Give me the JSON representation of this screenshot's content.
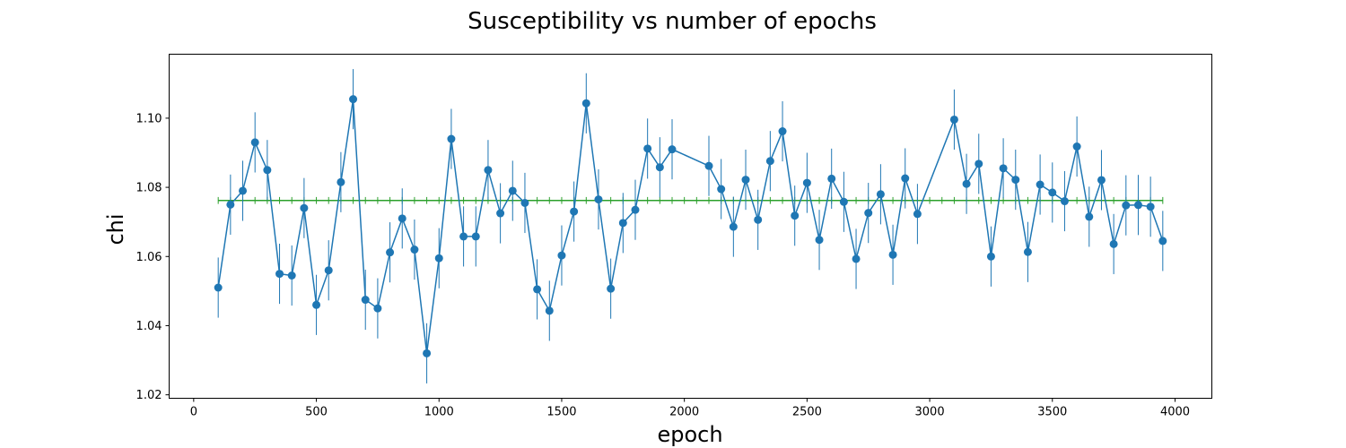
{
  "chart_data": {
    "type": "line",
    "title": "Susceptibility vs number of epochs",
    "xlabel": "epoch",
    "ylabel": "chi",
    "xlim": [
      -100,
      4150
    ],
    "ylim": [
      1.019,
      1.1185
    ],
    "xticks": [
      0,
      500,
      1000,
      1500,
      2000,
      2500,
      3000,
      3500,
      4000
    ],
    "xtick_labels": [
      "0",
      "500",
      "1000",
      "1500",
      "2000",
      "2500",
      "3000",
      "3500",
      "4000"
    ],
    "yticks": [
      1.02,
      1.04,
      1.06,
      1.08,
      1.1
    ],
    "ytick_labels": [
      "1.02",
      "1.04",
      "1.06",
      "1.08",
      "1.10"
    ],
    "grid": false,
    "series": [
      {
        "color": "#1f77b4",
        "marker": "circle",
        "error": 0.0087,
        "x": [
          100,
          150,
          200,
          250,
          300,
          350,
          400,
          450,
          500,
          550,
          600,
          650,
          700,
          750,
          800,
          850,
          900,
          950,
          1000,
          1050,
          1100,
          1150,
          1200,
          1250,
          1300,
          1350,
          1400,
          1450,
          1500,
          1550,
          1600,
          1650,
          1700,
          1750,
          1800,
          1850,
          1900,
          1950,
          2100,
          2150,
          2200,
          2250,
          2300,
          2350,
          2400,
          2450,
          2500,
          2550,
          2600,
          2650,
          2700,
          2750,
          2800,
          2850,
          2900,
          2950,
          3100,
          3150,
          3200,
          3250,
          3300,
          3350,
          3400,
          3450,
          3500,
          3550,
          3600,
          3650,
          3700,
          3750,
          3800,
          3850,
          3900,
          3950
        ],
        "y": [
          1.051,
          1.075,
          1.079,
          1.093,
          1.085,
          1.055,
          1.0545,
          1.074,
          1.046,
          1.056,
          1.0815,
          1.1055,
          1.0475,
          1.045,
          1.0612,
          1.071,
          1.062,
          1.032,
          1.0595,
          1.094,
          1.0658,
          1.0658,
          1.085,
          1.0725,
          1.079,
          1.0755,
          1.0505,
          1.0443,
          1.0603,
          1.073,
          1.1043,
          1.0765,
          1.0507,
          1.0697,
          1.0735,
          1.0912,
          1.0858,
          1.091,
          1.0862,
          1.0795,
          1.0686,
          1.0822,
          1.0706,
          1.0876,
          1.0962,
          1.0718,
          1.0813,
          1.0648,
          1.0825,
          1.0758,
          1.0593,
          1.0726,
          1.078,
          1.0605,
          1.0826,
          1.0723,
          1.0996,
          1.081,
          1.0868,
          1.06,
          1.0855,
          1.0822,
          1.0613,
          1.0808,
          1.0785,
          1.076,
          1.0918,
          1.0715,
          1.0821,
          1.0636,
          1.0748,
          1.0749,
          1.0744,
          1.0645
        ]
      },
      {
        "color": "#2ca02c",
        "marker": "none",
        "error": 0.001,
        "x": [
          100,
          150,
          200,
          250,
          300,
          350,
          400,
          450,
          500,
          550,
          600,
          650,
          700,
          750,
          800,
          850,
          900,
          950,
          1000,
          1050,
          1100,
          1150,
          1200,
          1250,
          1300,
          1350,
          1400,
          1450,
          1500,
          1550,
          1600,
          1650,
          1700,
          1750,
          1800,
          1850,
          1900,
          1950,
          2000,
          2050,
          2100,
          2150,
          2200,
          2250,
          2300,
          2350,
          2400,
          2450,
          2500,
          2550,
          2600,
          2650,
          2700,
          2750,
          2800,
          2850,
          2900,
          2950,
          3000,
          3050,
          3100,
          3150,
          3200,
          3250,
          3300,
          3350,
          3400,
          3450,
          3500,
          3550,
          3600,
          3650,
          3700,
          3750,
          3800,
          3850,
          3900,
          3950
        ],
        "y_constant": 1.0762
      }
    ]
  }
}
